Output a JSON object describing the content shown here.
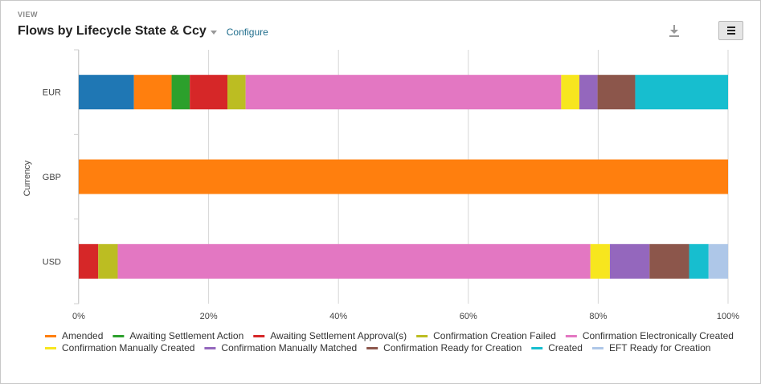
{
  "header": {
    "view_label": "VIEW",
    "title": "Flows by Lifecycle State & Ccy",
    "configure_label": "Configure",
    "download_icon": "download-icon",
    "menu_icon": "hamburger-menu-icon"
  },
  "chart_data": {
    "type": "bar",
    "orientation": "horizontal",
    "stacked": "percent",
    "title": "Flows by Lifecycle State & Ccy",
    "ylabel": "Currency",
    "xlabel": "",
    "categories": [
      "EUR",
      "GBP",
      "USD"
    ],
    "xlim": [
      0,
      100
    ],
    "x_ticks": [
      "0%",
      "20%",
      "40%",
      "60%",
      "80%",
      "100%"
    ],
    "grid": true,
    "legend_position": "bottom",
    "series": [
      {
        "name": "",
        "color": "#1f77b4",
        "values": [
          8.5,
          0,
          0
        ]
      },
      {
        "name": "Amended",
        "color": "#ff7f0e",
        "values": [
          5.8,
          100,
          0
        ]
      },
      {
        "name": "Awaiting Settlement Action",
        "color": "#2ca02c",
        "values": [
          2.8,
          0,
          0
        ]
      },
      {
        "name": "Awaiting Settlement Approval(s)",
        "color": "#d62728",
        "values": [
          5.8,
          0,
          3.0
        ]
      },
      {
        "name": "Confirmation Creation Failed",
        "color": "#bcbd22",
        "values": [
          2.8,
          0,
          3.0
        ]
      },
      {
        "name": "Confirmation Electronically Created",
        "color": "#e377c2",
        "values": [
          48.6,
          0,
          72.8
        ]
      },
      {
        "name": "Confirmation Manually Created",
        "color": "#f7e61e",
        "values": [
          2.8,
          0,
          3.0
        ]
      },
      {
        "name": "Confirmation Manually Matched",
        "color": "#9467bd",
        "values": [
          2.8,
          0,
          6.1
        ]
      },
      {
        "name": "Confirmation Ready for Creation",
        "color": "#8c564b",
        "values": [
          5.8,
          0,
          6.1
        ]
      },
      {
        "name": "Created",
        "color": "#17becf",
        "values": [
          14.3,
          0,
          3.0
        ]
      },
      {
        "name": "EFT Ready for Creation",
        "color": "#aec7e8",
        "values": [
          0,
          0,
          3.0
        ]
      }
    ]
  }
}
